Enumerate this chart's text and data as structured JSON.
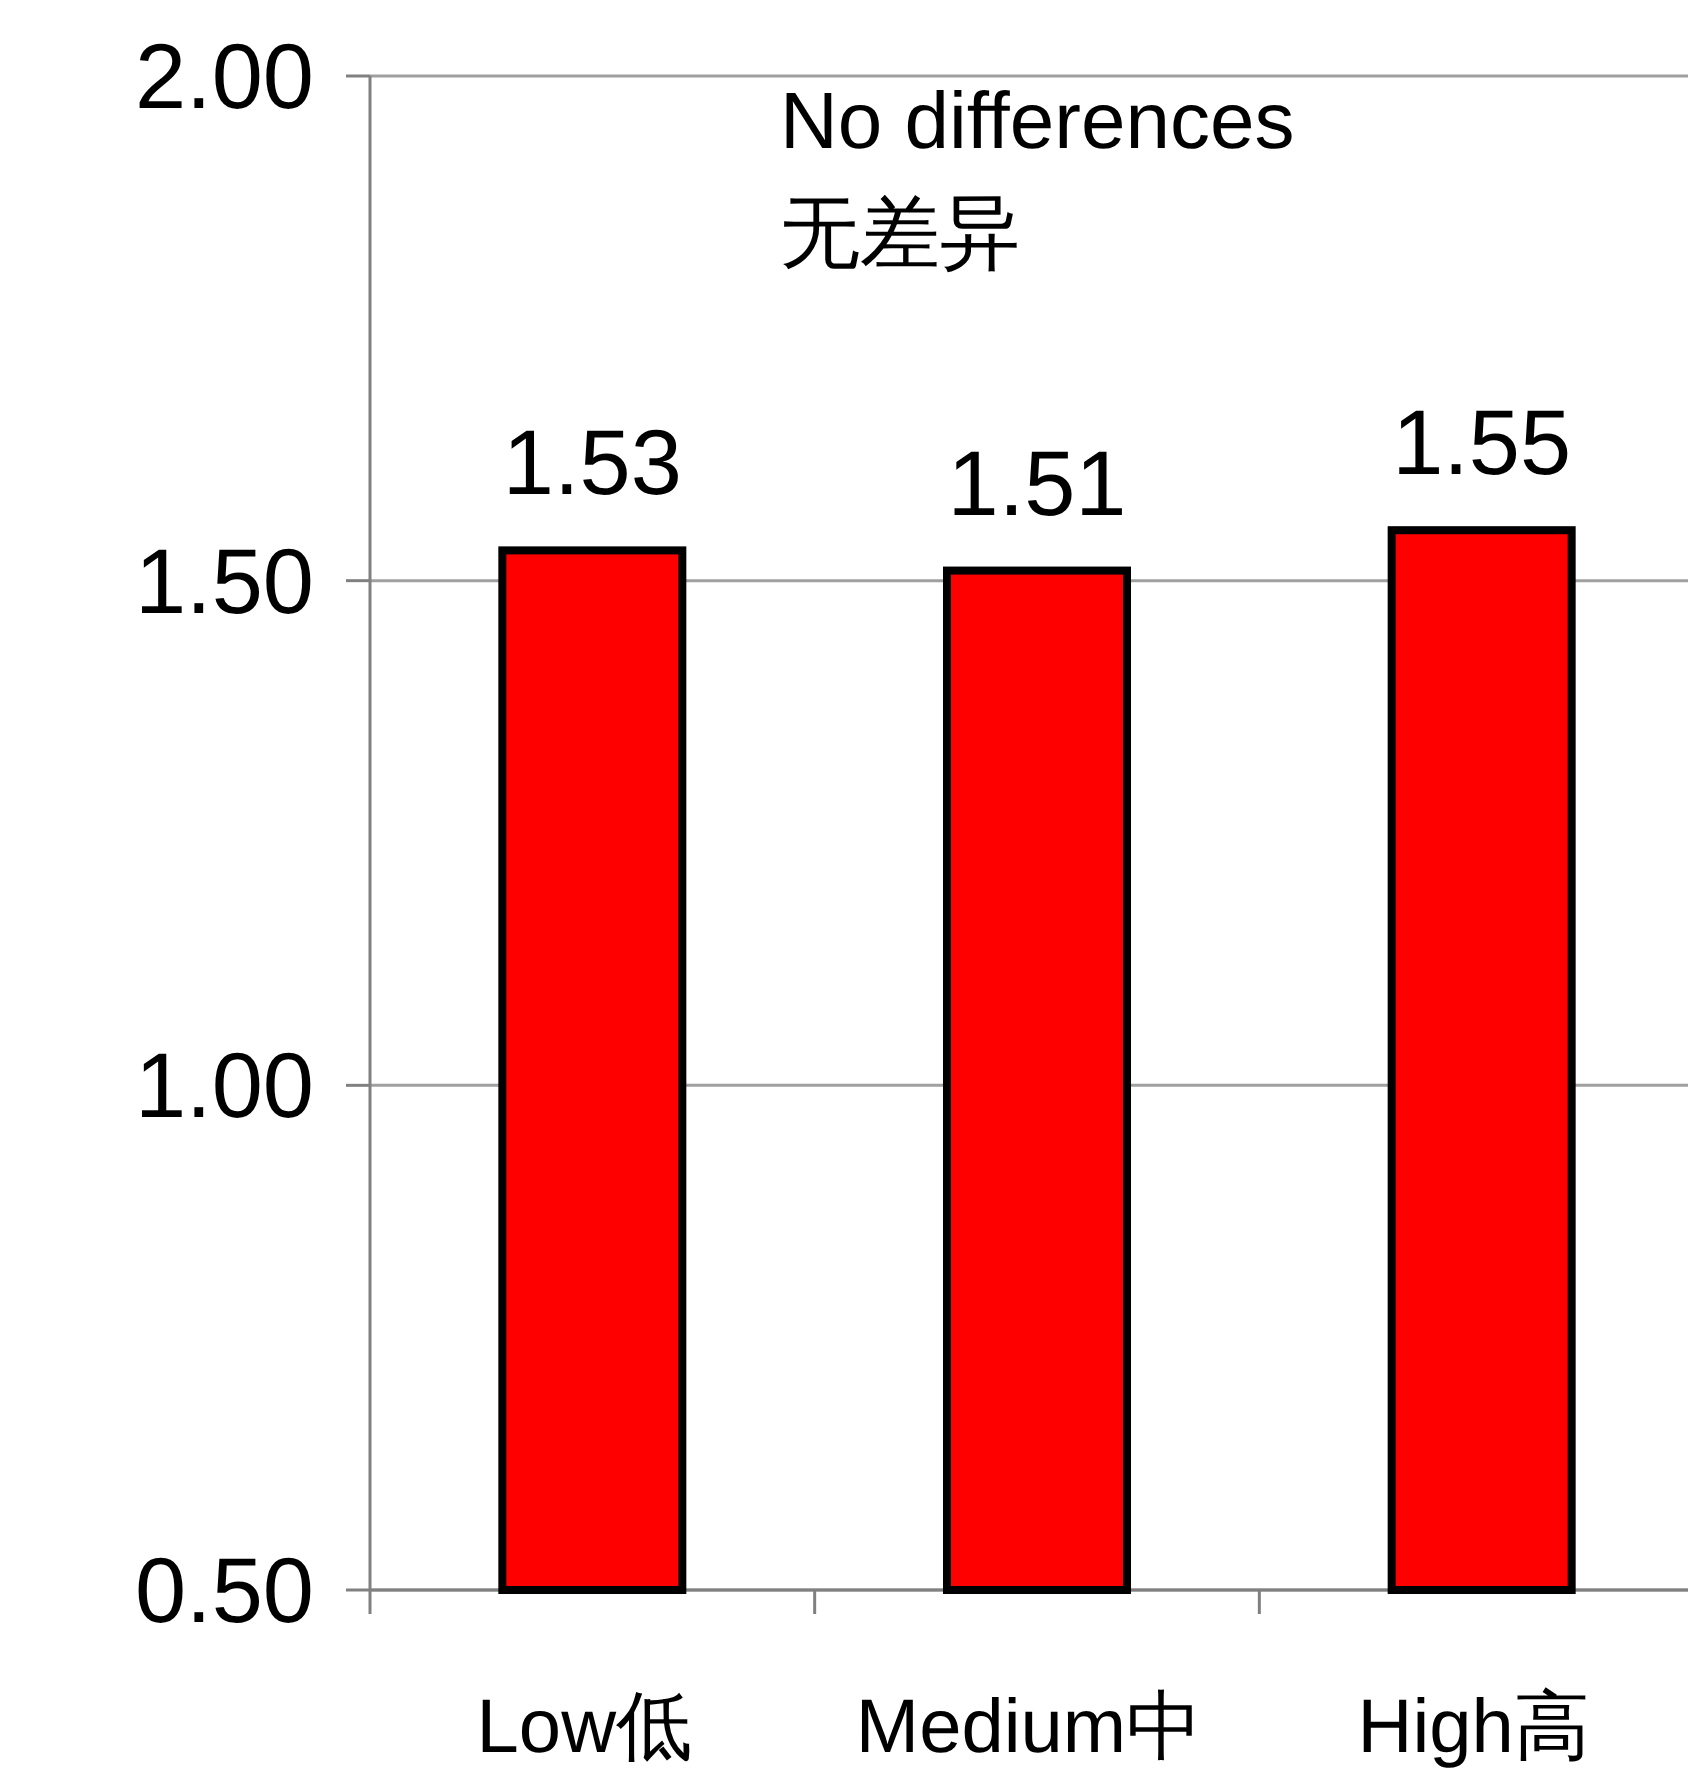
{
  "chart_data": {
    "type": "bar",
    "categories": [
      "Low低",
      "Medium中",
      "High高"
    ],
    "values": [
      1.53,
      1.51,
      1.55
    ],
    "color": "#ff0000",
    "ylim": [
      0.5,
      2.0
    ],
    "yticks": [
      {
        "value": 0.5,
        "label": "0.50"
      },
      {
        "value": 1.0,
        "label": "1.00"
      },
      {
        "value": 1.5,
        "label": "1.50"
      },
      {
        "value": 2.0,
        "label": "2.00"
      }
    ],
    "grid": "y",
    "data_labels": true,
    "annotations": [
      "No differences",
      "无差异"
    ]
  }
}
